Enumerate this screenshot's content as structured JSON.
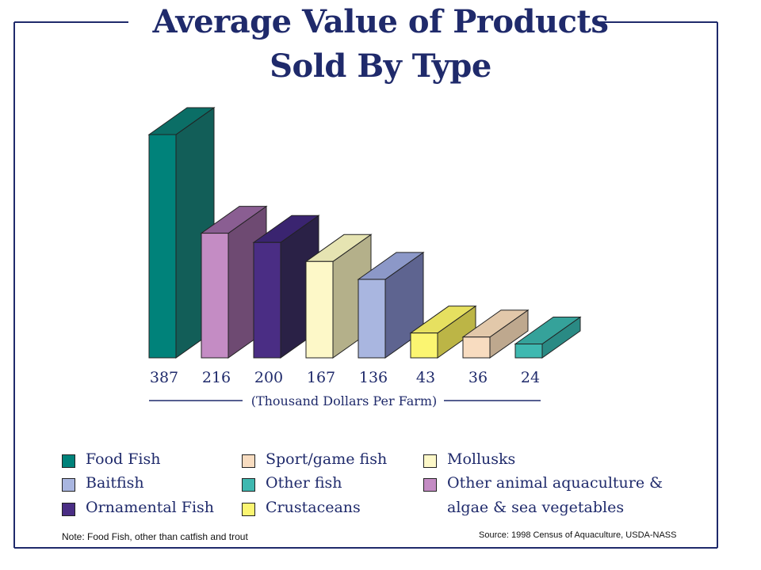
{
  "title_line1": "Average Value of Products",
  "title_line2": "Sold By Type",
  "note": "Note:  Food Fish, other than catfish and trout",
  "source": "Source:  1998 Census of Aquaculture, USDA-NASS",
  "legend": [
    {
      "label": "Food Fish",
      "color": "#00827a"
    },
    {
      "label": "Sport/game fish",
      "color": "#f8dcc0"
    },
    {
      "label": "Mollusks",
      "color": "#fdf8c8"
    },
    {
      "label": "Baitfish",
      "color": "#a9b6e0"
    },
    {
      "label": "Other fish",
      "color": "#3fb8b0"
    },
    {
      "label": "Other animal aquaculture &",
      "color": "#c48cc4"
    },
    {
      "label": "Ornamental Fish",
      "color": "#4a2d84"
    },
    {
      "label": "Crustaceans",
      "color": "#fbf571"
    },
    {
      "label": "algae & sea vegetables",
      "color": ""
    }
  ],
  "chart_data": {
    "type": "bar",
    "title": "Average Value of Products Sold By Type",
    "xlabel": "(Thousand Dollars Per Farm)",
    "ylabel": "",
    "categories": [
      "Food Fish",
      "Other animal aquaculture & algae & sea vegetables",
      "Ornamental Fish",
      "Mollusks",
      "Baitfish",
      "Crustaceans",
      "Sport/game fish",
      "Other fish"
    ],
    "values": [
      387,
      216,
      200,
      167,
      136,
      43,
      36,
      24
    ],
    "value_labels": [
      "387",
      "216",
      "200",
      "167",
      "136",
      "43",
      "36",
      "24"
    ],
    "colors": [
      "#00827a",
      "#c48cc4",
      "#4a2d84",
      "#fdf8c8",
      "#a9b6e0",
      "#fbf571",
      "#f8dcc0",
      "#3fb8b0"
    ],
    "side_colors": [
      "#125e58",
      "#6e4a72",
      "#2a2146",
      "#b4b08a",
      "#5e6490",
      "#bcb546",
      "#bea88e",
      "#2a8a84"
    ],
    "top_colors": [
      "#0b6e66",
      "#8a5e92",
      "#3a2470",
      "#e6e4b2",
      "#8c98c8",
      "#e6e060",
      "#e2c8aa",
      "#35a29a"
    ],
    "ylim": [
      0,
      387
    ],
    "grid": false,
    "legend_position": "bottom"
  }
}
